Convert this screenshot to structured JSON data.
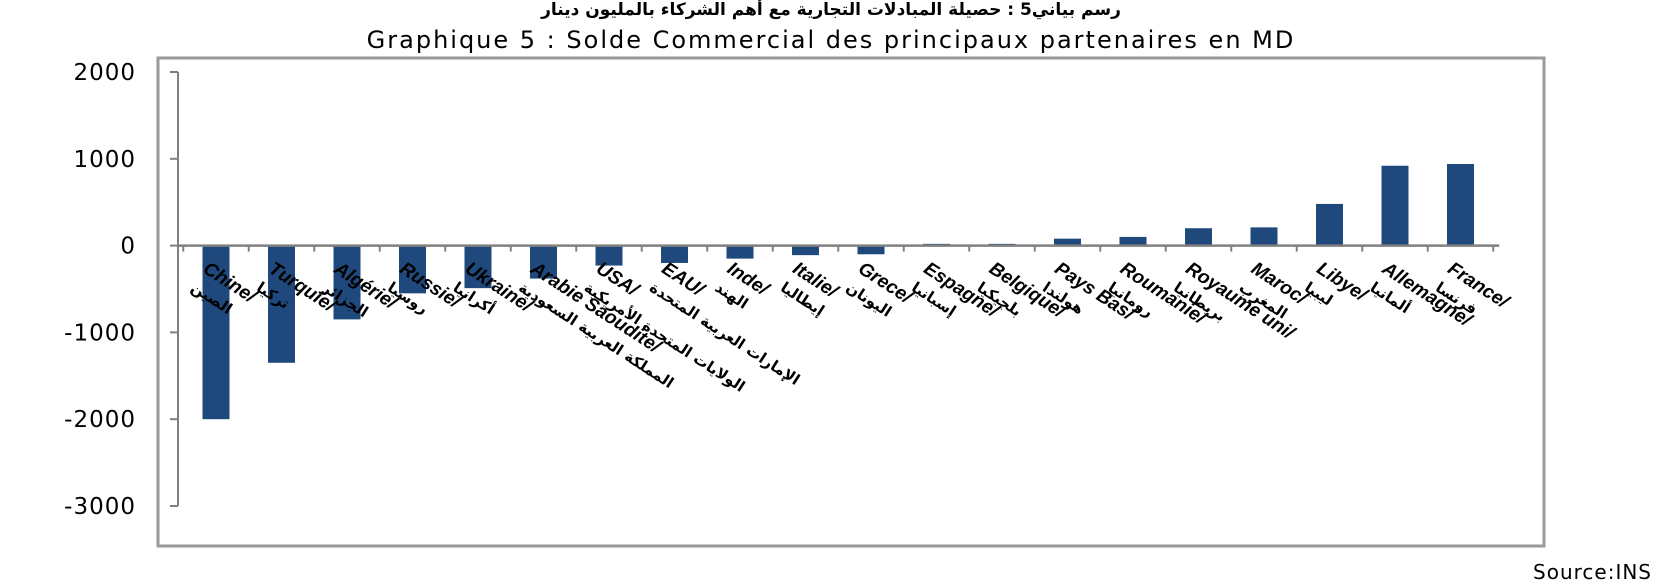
{
  "chart_data": {
    "type": "bar",
    "title_ar": "رسم بياني5 : حصيلة المبادلات التجارية مع أهم الشركاء بالمليون دينار",
    "title": "Graphique 5 : Solde Commercial des principaux partenaires en MD",
    "source": "Source:INS",
    "ylim": [
      -3000,
      2000
    ],
    "yticks": [
      2000,
      1000,
      0,
      -1000,
      -2000,
      -3000
    ],
    "grid": false,
    "bar_color": "#1F497D",
    "categories": [
      {
        "fr": "Chine/",
        "ar": "الصين"
      },
      {
        "fr": "Turquie/",
        "ar": "تركيا"
      },
      {
        "fr": "Algérie/",
        "ar": "الجزائر"
      },
      {
        "fr": "Russie/",
        "ar": "روسيا"
      },
      {
        "fr": "Ukraine/",
        "ar": "أكرانيا"
      },
      {
        "fr": "Arabie Saoudite/",
        "ar": "المملكة العربية السعودية"
      },
      {
        "fr": "USA/",
        "ar": "الولايات المتحدة الأمريكية"
      },
      {
        "fr": "EAU/",
        "ar": "الإمارات العربية المتحدة"
      },
      {
        "fr": "Inde/",
        "ar": "الهند"
      },
      {
        "fr": "Italie/",
        "ar": "إيطاليا"
      },
      {
        "fr": "Grece/",
        "ar": "اليونان"
      },
      {
        "fr": "Espagne/",
        "ar": "إسبانيا"
      },
      {
        "fr": "Belgique/",
        "ar": "بلجيكيا"
      },
      {
        "fr": "Pays Bas/",
        "ar": "هولندا"
      },
      {
        "fr": "Roumanie/",
        "ar": "رومانيا"
      },
      {
        "fr": "Royaume uni/",
        "ar": "بريطانيا"
      },
      {
        "fr": "Maroc/",
        "ar": "المغرب"
      },
      {
        "fr": "Libye/",
        "ar": "ليبيا"
      },
      {
        "fr": "Allemagne/",
        "ar": "ألمانيا"
      },
      {
        "fr": "France/",
        "ar": "فرنسا"
      }
    ],
    "values": [
      -2000,
      -1350,
      -850,
      -550,
      -490,
      -380,
      -230,
      -200,
      -150,
      -110,
      -100,
      20,
      20,
      80,
      100,
      200,
      210,
      480,
      920,
      940
    ]
  }
}
